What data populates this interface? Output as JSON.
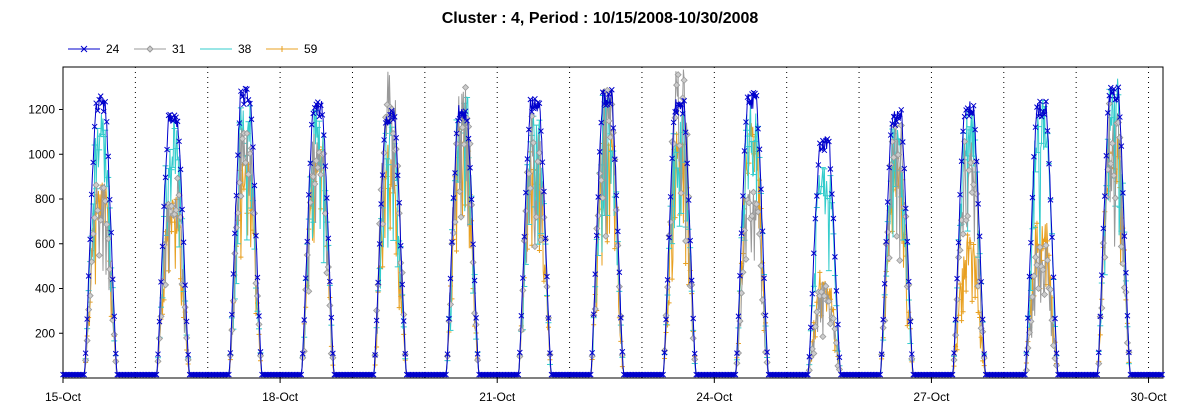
{
  "chart_data": {
    "type": "line",
    "title": "Cluster : 4, Period : 10/15/2008-10/30/2008",
    "xlabel": "",
    "ylabel": "",
    "x_range_days": [
      0,
      15.2
    ],
    "ylim": [
      0,
      1390
    ],
    "y_ticks": [
      200,
      400,
      600,
      800,
      1000,
      1200
    ],
    "x_ticks": [
      {
        "day": 0,
        "label": "15-Oct"
      },
      {
        "day": 3,
        "label": "18-Oct"
      },
      {
        "day": 6,
        "label": "21-Oct"
      },
      {
        "day": 9,
        "label": "24-Oct"
      },
      {
        "day": 12,
        "label": "27-Oct"
      },
      {
        "day": 15,
        "label": "30-Oct"
      }
    ],
    "grid": "dotted vertical lines at midnight, none horizontal",
    "legend_position": "top-left",
    "series": [
      {
        "name": "24",
        "color": "#0000cc",
        "marker": "x",
        "daily_peak": [
          1260,
          1180,
          1300,
          1240,
          1200,
          1220,
          1260,
          1290,
          1250,
          1280,
          1080,
          1200,
          1240,
          1240,
          1300
        ]
      },
      {
        "name": "31",
        "color": "#999999",
        "marker": "diamond",
        "daily_peak": [
          880,
          900,
          1150,
          1100,
          1370,
          1330,
          1230,
          1300,
          1390,
          850,
          430,
          1200,
          1060,
          620,
          1280
        ]
      },
      {
        "name": "38",
        "color": "#33cccc",
        "marker": "dash",
        "daily_peak": [
          1180,
          1190,
          1250,
          1200,
          1180,
          1290,
          1200,
          1280,
          1220,
          1280,
          1010,
          1180,
          1200,
          1270,
          1340
        ]
      },
      {
        "name": "59",
        "color": "#e8a020",
        "marker": "plus",
        "daily_peak": [
          880,
          820,
          1020,
          1120,
          1050,
          1130,
          1080,
          1170,
          1140,
          1160,
          480,
          1000,
          640,
          740,
          1130
        ]
      }
    ],
    "daily_profile": {
      "sunrise_hour": 7,
      "sunset_hour": 18,
      "night_value": 15
    }
  }
}
